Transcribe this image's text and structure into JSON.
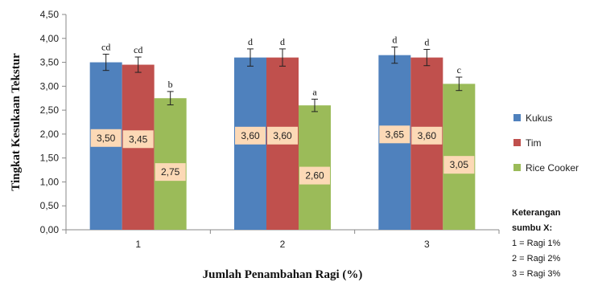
{
  "chart_data": {
    "type": "bar",
    "categories": [
      "1",
      "2",
      "3"
    ],
    "series": [
      {
        "name": "Kukus",
        "color": "#4f81bd",
        "values": [
          3.5,
          3.6,
          3.65
        ],
        "labels": [
          "3,50",
          "3,60",
          "3,65"
        ],
        "errors": [
          0.17,
          0.18,
          0.17
        ],
        "sig": [
          "cd",
          "d",
          "d"
        ]
      },
      {
        "name": "Tim",
        "color": "#c0504d",
        "values": [
          3.45,
          3.6,
          3.6
        ],
        "labels": [
          "3,45",
          "3,60",
          "3,60"
        ],
        "errors": [
          0.16,
          0.18,
          0.17
        ],
        "sig": [
          "cd",
          "d",
          "d"
        ]
      },
      {
        "name": "Rice Cooker",
        "color": "#9bbb59",
        "values": [
          2.75,
          2.6,
          3.05
        ],
        "labels": [
          "2,75",
          "2,60",
          "3,05"
        ],
        "errors": [
          0.14,
          0.13,
          0.14
        ],
        "sig": [
          "b",
          "a",
          "c"
        ]
      }
    ],
    "title": "",
    "xlabel": "Jumlah Penambahan Ragi (%)",
    "ylabel": "Tingkat Kesukaan Tekstur",
    "ylim": [
      0,
      4.5
    ],
    "yticks": [
      "0,00",
      "0,50",
      "1,00",
      "1,50",
      "2,00",
      "2,50",
      "3,00",
      "3,50",
      "4,00",
      "4,50"
    ],
    "grid": false,
    "legend": "right"
  },
  "note": {
    "title_line1": "Keterangan",
    "title_line2": "sumbu X:",
    "items": [
      "1 = Ragi 1%",
      "2 = Ragi 2%",
      "3 = Ragi 3%"
    ]
  }
}
